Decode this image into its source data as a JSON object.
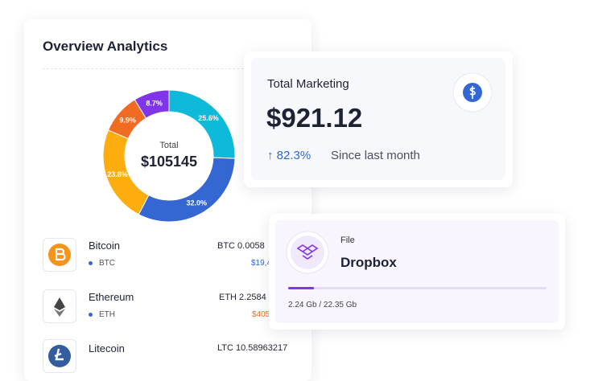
{
  "chart_data": {
    "type": "donut",
    "title": "Overview Analytics",
    "center_label": "Total",
    "center_value": "$105145",
    "values": [
      25.6,
      32.0,
      23.8,
      9.9,
      8.7
    ],
    "value_labels": [
      "25.6%",
      "32.0%",
      "23.8%",
      "9.9%",
      "8.7%"
    ],
    "colors": [
      "#0fb9d9",
      "#3467d1",
      "#fdae0e",
      "#f26b22",
      "#8135e8"
    ]
  },
  "coins": [
    {
      "name": "Bitcoin",
      "symbol": "BTC",
      "amount": "BTC 0.0058",
      "value": "$19,4"
    },
    {
      "name": "Ethereum",
      "symbol": "ETH",
      "amount": "ETH 2.2584",
      "value": "$405"
    },
    {
      "name": "Litecoin",
      "amount": "LTC 10.58963217"
    }
  ],
  "marketing": {
    "title": "Total Marketing",
    "amount": "$921.12",
    "change": "82.3%",
    "note": "Since last month"
  },
  "file": {
    "label": "File",
    "name": "Dropbox",
    "progress": {
      "used": 2.24,
      "total": 22.35,
      "label": "2.24 Gb / 22.35 Gb"
    }
  }
}
